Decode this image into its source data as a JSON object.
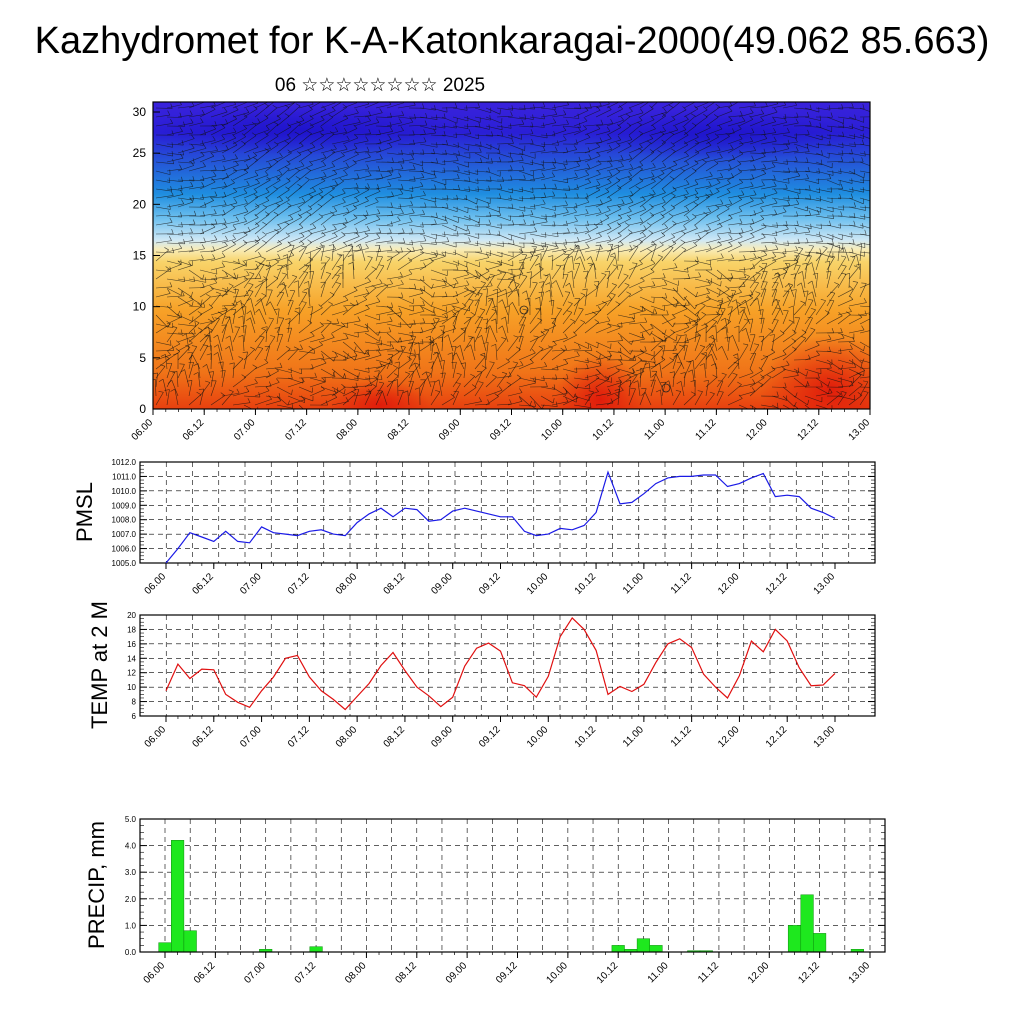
{
  "title": "Kazhydromet for K-A-Katonkaragai-2000(49.062 85.663)",
  "subtitle": "06 ☆☆☆☆☆☆☆☆ 2025",
  "time_labels": [
    "06.00",
    "06.12",
    "07.00",
    "07.12",
    "08.00",
    "08.12",
    "09.00",
    "09.12",
    "10.00",
    "10.12",
    "11.00",
    "11.12",
    "12.00",
    "12.12",
    "13.00"
  ],
  "chart_data": [
    {
      "type": "heatmap",
      "name": "temperature-wind-cross-section",
      "ylim": [
        0,
        30
      ],
      "yticks": [
        0,
        5,
        10,
        15,
        20,
        25,
        30
      ],
      "colors": {
        "warm": "#e8341c",
        "mid": "#f5b93a",
        "light": "#cfe8f5",
        "cool": "#1f8ee0",
        "cold": "#2a1fd6"
      },
      "overlay": "wind barbs"
    },
    {
      "type": "line",
      "ylabel": "PMSL",
      "ylim": [
        1005.0,
        1012.0
      ],
      "yticks": [
        "1005.0",
        "1006.0",
        "1007.0",
        "1008.0",
        "1009.0",
        "1010.0",
        "1011.0",
        "1012.0"
      ],
      "color": "#1a1ae6",
      "values": [
        1005.0,
        1006.0,
        1007.1,
        1006.8,
        1006.5,
        1007.2,
        1006.5,
        1006.4,
        1007.5,
        1007.1,
        1007.0,
        1006.9,
        1007.2,
        1007.3,
        1007.0,
        1006.9,
        1007.8,
        1008.4,
        1008.8,
        1008.2,
        1008.8,
        1008.7,
        1007.9,
        1008.0,
        1008.6,
        1008.8,
        1008.6,
        1008.4,
        1008.2,
        1008.2,
        1007.2,
        1006.9,
        1007.0,
        1007.4,
        1007.3,
        1007.6,
        1008.5,
        1011.3,
        1009.1,
        1009.2,
        1009.8,
        1010.5,
        1010.9,
        1011.0,
        1011.0,
        1011.1,
        1011.1,
        1010.3,
        1010.5,
        1010.9,
        1011.2,
        1009.6,
        1009.7,
        1009.6,
        1008.8,
        1008.5,
        1008.1
      ]
    },
    {
      "type": "line",
      "ylabel": "TEMP at 2 M",
      "ylim": [
        6,
        20
      ],
      "yticks": [
        "6",
        "8",
        "10",
        "12",
        "14",
        "16",
        "18",
        "20"
      ],
      "color": "#e01010",
      "values": [
        9.5,
        13.2,
        11.2,
        12.5,
        12.4,
        9.0,
        7.9,
        7.2,
        9.5,
        11.4,
        14.0,
        14.4,
        11.4,
        9.5,
        8.3,
        6.9,
        8.7,
        10.5,
        13.0,
        14.8,
        12.3,
        10.0,
        8.8,
        7.3,
        8.6,
        12.9,
        15.4,
        16.1,
        15.0,
        10.6,
        10.2,
        8.6,
        11.5,
        17.0,
        19.6,
        18.0,
        15.1,
        9.0,
        10.1,
        9.4,
        10.4,
        13.4,
        16.0,
        16.7,
        15.5,
        11.8,
        10.0,
        8.5,
        11.6,
        16.4,
        14.9,
        18.0,
        16.4,
        12.7,
        10.2,
        10.3,
        11.9
      ]
    },
    {
      "type": "bar",
      "ylabel": "PRECIP, mm",
      "ylim": [
        0.0,
        5.0
      ],
      "yticks": [
        "0.0",
        "1.0",
        "2.0",
        "3.0",
        "4.0",
        "5.0"
      ],
      "color": "#1ee81e",
      "values": [
        0.35,
        4.2,
        0.8,
        0,
        0,
        0,
        0,
        0,
        0.1,
        0,
        0,
        0,
        0.2,
        0,
        0,
        0,
        0,
        0,
        0,
        0,
        0,
        0,
        0,
        0,
        0,
        0,
        0,
        0,
        0,
        0,
        0,
        0,
        0,
        0,
        0,
        0,
        0.25,
        0.1,
        0.5,
        0.25,
        0,
        0,
        0.05,
        0.05,
        0,
        0,
        0,
        0,
        0,
        0,
        1.0,
        2.15,
        0.7,
        0,
        0,
        0.1,
        0
      ]
    }
  ]
}
